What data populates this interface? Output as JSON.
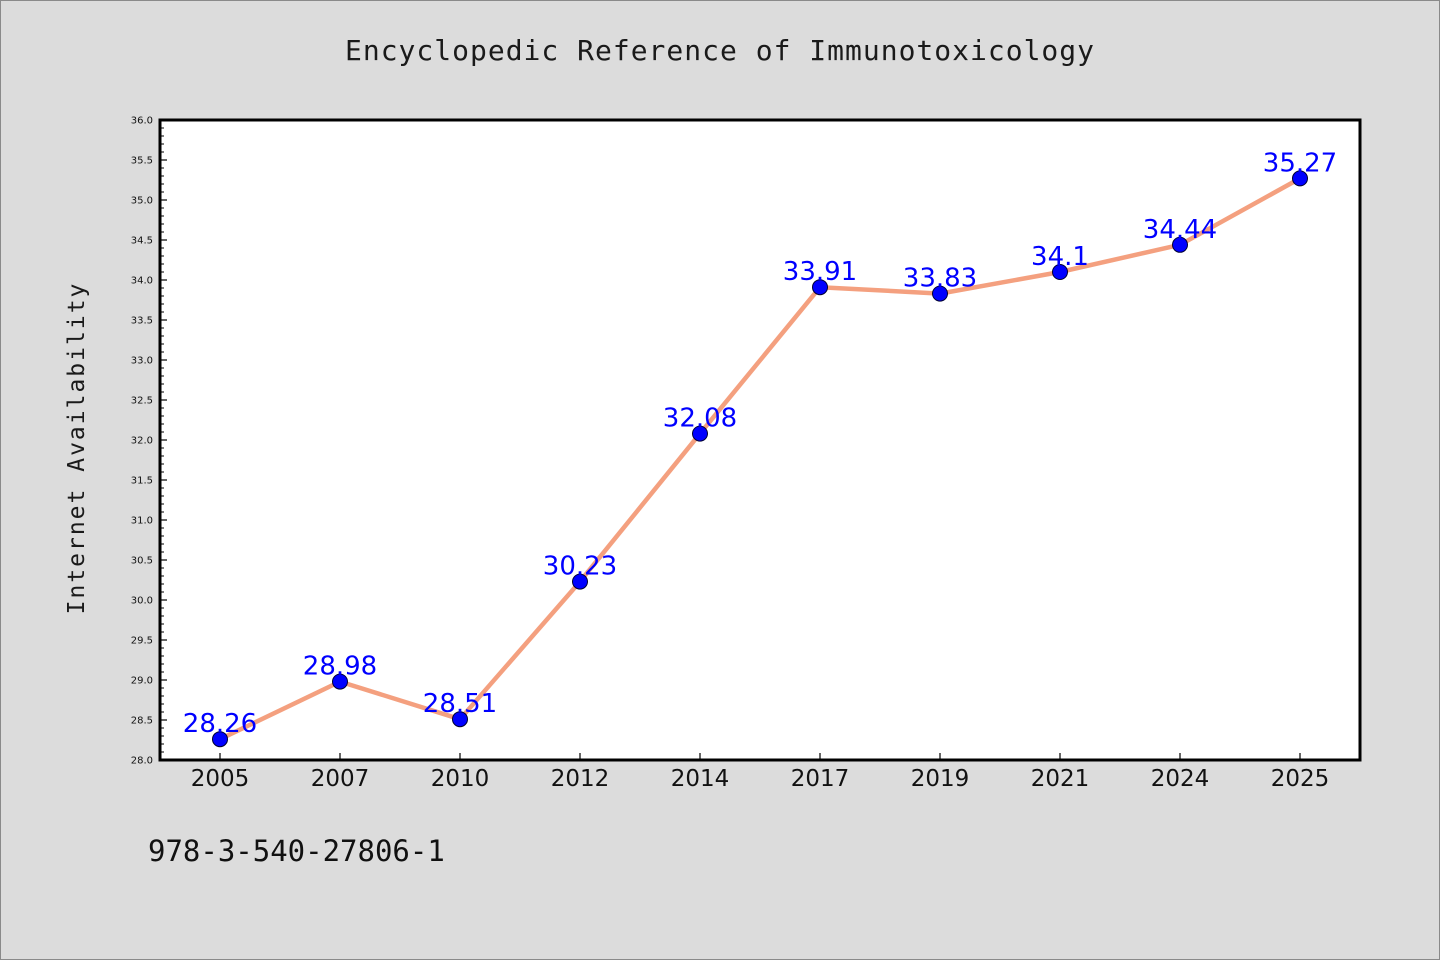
{
  "page": {
    "isbn": "978-3-540-27806-1"
  },
  "chart_data": {
    "type": "line",
    "title": "Encyclopedic Reference of Immunotoxicology",
    "xlabel": "",
    "ylabel": "Internet Availability",
    "categories": [
      "2005",
      "2007",
      "2010",
      "2012",
      "2014",
      "2017",
      "2019",
      "2021",
      "2024",
      "2025"
    ],
    "series": [
      {
        "values": [
          28.26,
          28.98,
          28.51,
          30.23,
          32.08,
          33.91,
          33.83,
          34.1,
          34.44,
          35.27
        ],
        "data_labels": [
          "28.26",
          "28.98",
          "28.51",
          "30.23",
          "32.08",
          "33.91",
          "33.83",
          "34.1",
          "34.44",
          "35.27"
        ]
      }
    ],
    "ylim": [
      28.0,
      36.0
    ],
    "yticks": [
      "28.0",
      "28.5",
      "29.0",
      "29.5",
      "30.0",
      "30.5",
      "31.0",
      "31.5",
      "32.0",
      "32.5",
      "33.0",
      "33.5",
      "34.0",
      "34.5",
      "35.0",
      "35.5",
      "36.0"
    ],
    "grid": false,
    "legend": "none",
    "colors": {
      "line": "#f4a07f",
      "marker": "#0000ff",
      "data_label": "#0000ff",
      "plot_background": "#ffffff",
      "page_background": "#dcdcdc"
    }
  }
}
